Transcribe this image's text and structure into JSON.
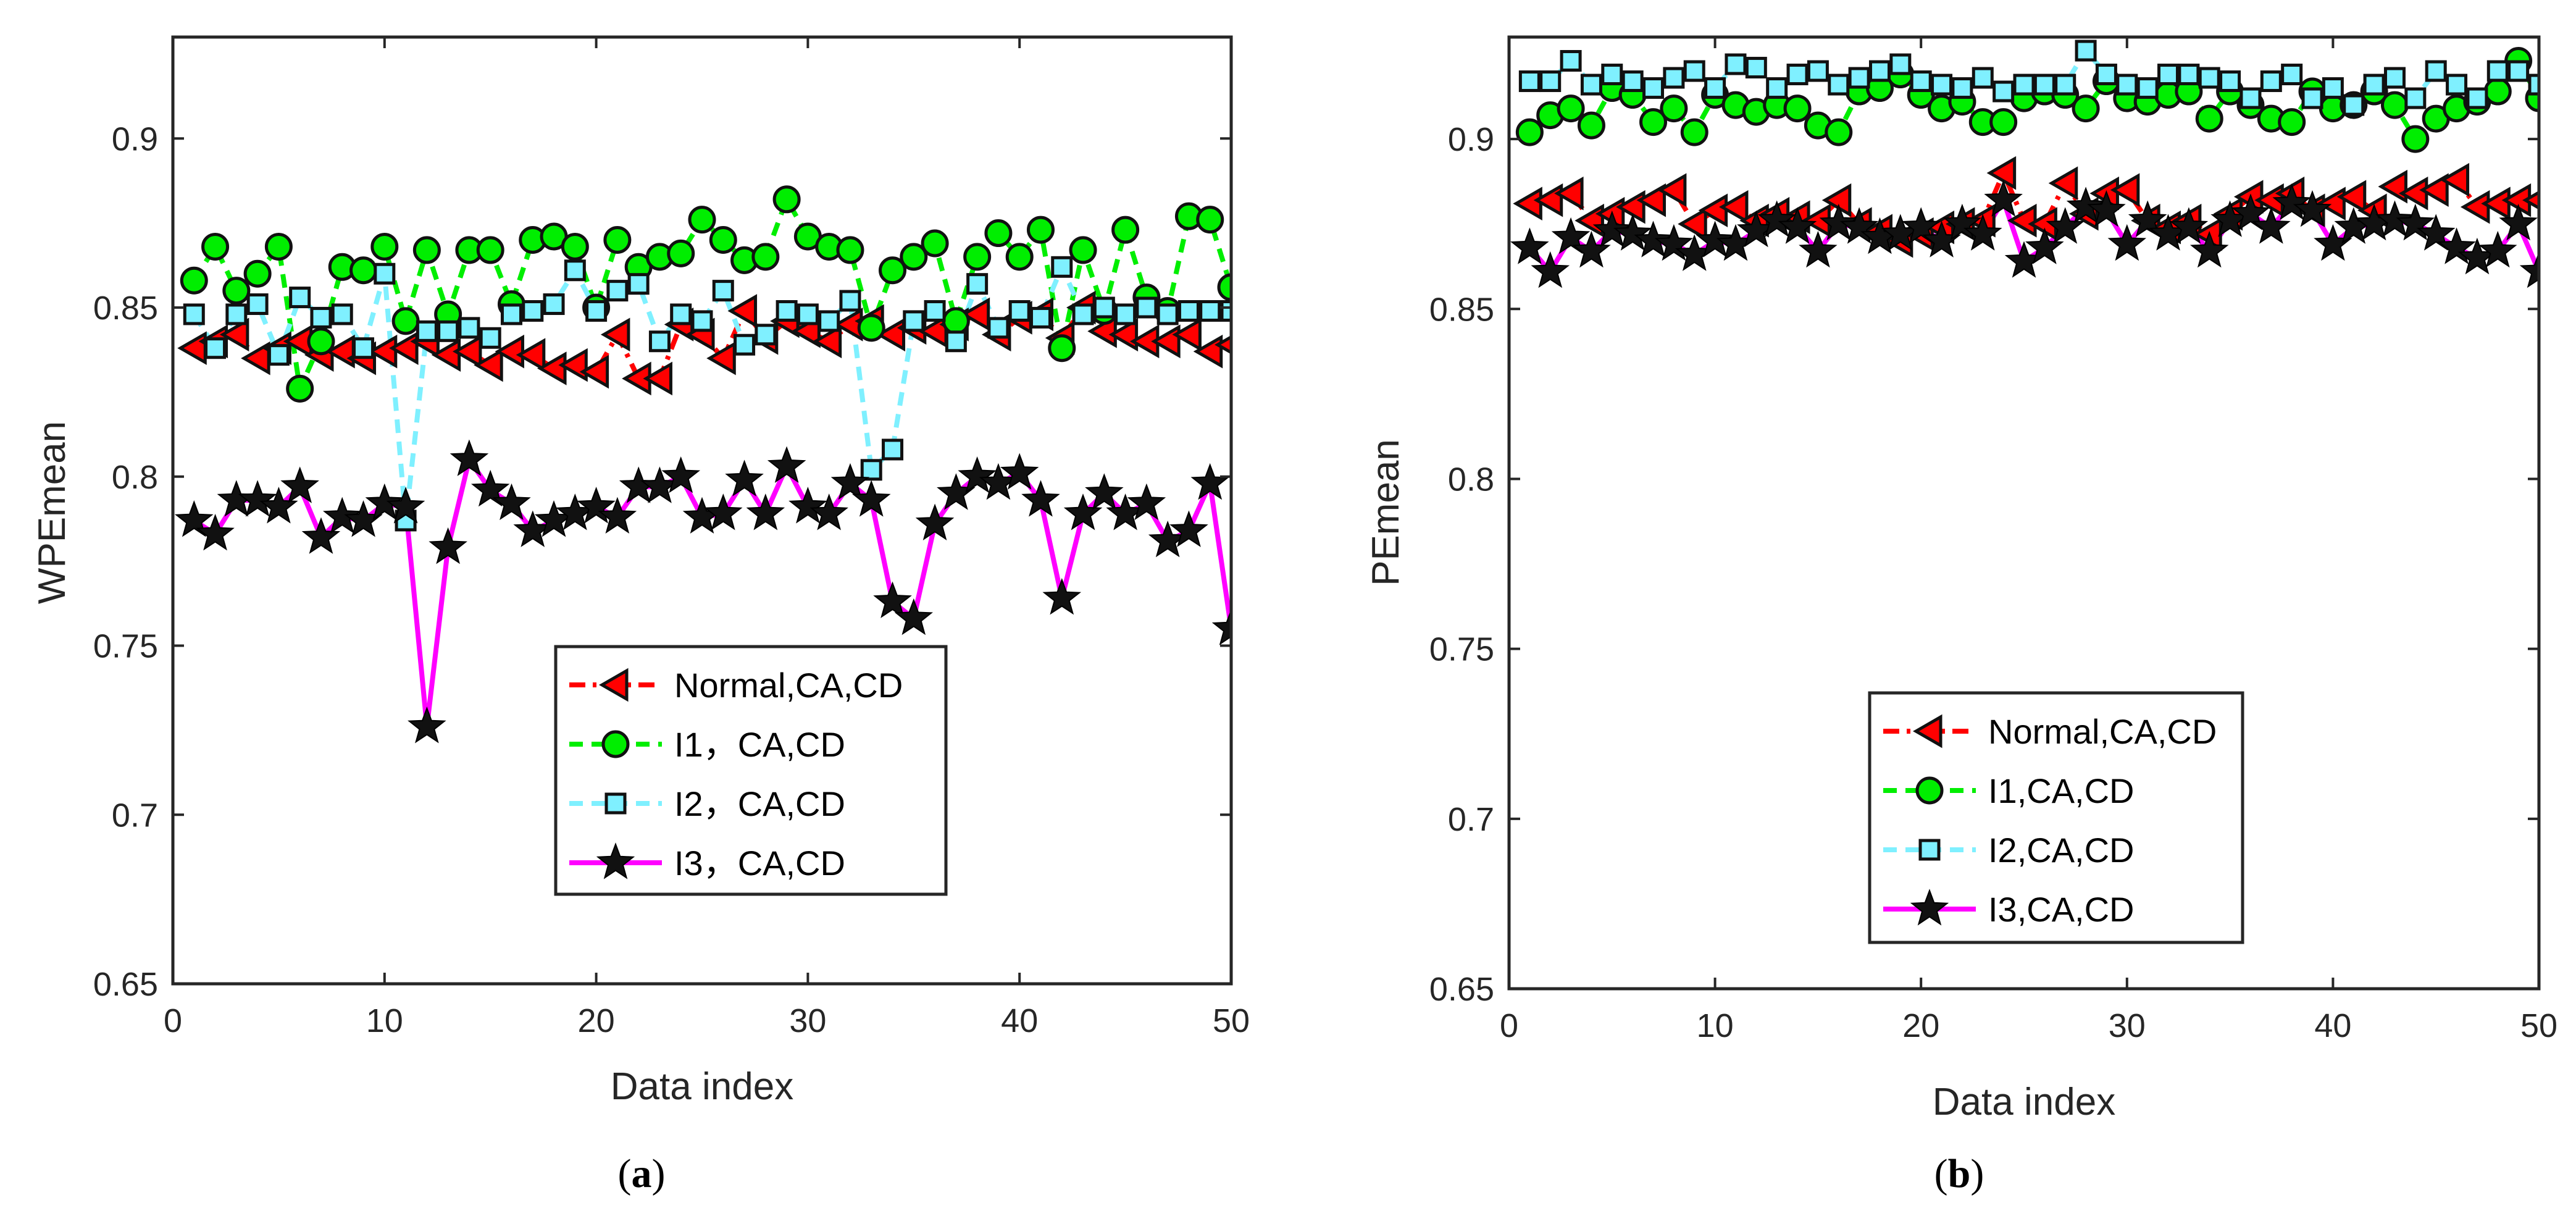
{
  "chart_data": [
    {
      "id": "a",
      "type": "line",
      "caption": {
        "open": "(",
        "letter": "a",
        "close": ")"
      },
      "xlabel": "Data index",
      "ylabel": "WPEmean",
      "xlim": [
        0,
        50
      ],
      "ylim": [
        0.65,
        0.93
      ],
      "xticks": [
        0,
        10,
        20,
        30,
        40,
        50
      ],
      "xtick_labels": [
        "0",
        "10",
        "20",
        "30",
        "40",
        "50"
      ],
      "yticks": [
        0.65,
        0.7,
        0.75,
        0.8,
        0.85,
        0.9
      ],
      "ytick_labels": [
        "0.65",
        "0.7",
        "0.75",
        "0.8",
        "0.85",
        "0.9"
      ],
      "legend_position": "lower-right",
      "x": [
        1,
        2,
        3,
        4,
        5,
        6,
        7,
        8,
        9,
        10,
        11,
        12,
        13,
        14,
        15,
        16,
        17,
        18,
        19,
        20,
        21,
        22,
        23,
        24,
        25,
        26,
        27,
        28,
        29,
        30,
        31,
        32,
        33,
        34,
        35,
        36,
        37,
        38,
        39,
        40,
        41,
        42,
        43,
        44,
        45,
        46,
        47,
        48,
        49,
        50
      ],
      "series": [
        {
          "name": "Normal,CA,CD",
          "color": "#ff0000",
          "marker": "triangle-left",
          "line": "dash-dot",
          "values": [
            0.838,
            0.84,
            0.842,
            0.835,
            0.838,
            0.84,
            0.836,
            0.837,
            0.835,
            0.837,
            0.838,
            0.84,
            0.836,
            0.837,
            0.833,
            0.837,
            0.836,
            0.832,
            0.833,
            0.831,
            0.842,
            0.829,
            0.829,
            0.845,
            0.842,
            0.835,
            0.849,
            0.841,
            0.846,
            0.843,
            0.84,
            0.845,
            0.846,
            0.842,
            0.844,
            0.843,
            0.845,
            0.848,
            0.842,
            0.847,
            0.848,
            0.841,
            0.85,
            0.843,
            0.842,
            0.84,
            0.84,
            0.842,
            0.837,
            0.839
          ]
        },
        {
          "name": "I1，CA,CD",
          "color": "#00ee00",
          "marker": "circle",
          "line": "dash",
          "values": [
            0.858,
            0.868,
            0.855,
            0.86,
            0.868,
            0.826,
            0.84,
            0.862,
            0.861,
            0.868,
            0.846,
            0.867,
            0.848,
            0.867,
            0.867,
            0.851,
            0.87,
            0.871,
            0.868,
            0.85,
            0.87,
            0.862,
            0.865,
            0.866,
            0.876,
            0.87,
            0.864,
            0.865,
            0.882,
            0.871,
            0.868,
            0.867,
            0.844,
            0.861,
            0.865,
            0.869,
            0.846,
            0.865,
            0.872,
            0.865,
            0.873,
            0.838,
            0.867,
            0.849,
            0.873,
            0.853,
            0.849,
            0.877,
            0.876,
            0.856
          ]
        },
        {
          "name": "I2，CA,CD",
          "color": "#7ff0ff",
          "marker": "square",
          "line": "dash",
          "values": [
            0.848,
            0.838,
            0.848,
            0.851,
            0.836,
            0.853,
            0.847,
            0.848,
            0.838,
            0.86,
            0.787,
            0.843,
            0.843,
            0.844,
            0.841,
            0.848,
            0.849,
            0.851,
            0.861,
            0.849,
            0.855,
            0.857,
            0.84,
            0.848,
            0.846,
            0.855,
            0.839,
            0.842,
            0.849,
            0.848,
            0.846,
            0.852,
            0.802,
            0.808,
            0.846,
            0.849,
            0.84,
            0.857,
            0.844,
            0.849,
            0.847,
            0.862,
            0.848,
            0.85,
            0.848,
            0.85,
            0.848,
            0.849,
            0.849,
            0.849
          ]
        },
        {
          "name": "I3，CA,CD",
          "color": "#ff00ff",
          "marker": "star",
          "line": "solid",
          "values": [
            0.787,
            0.783,
            0.793,
            0.793,
            0.791,
            0.797,
            0.782,
            0.788,
            0.787,
            0.792,
            0.791,
            0.726,
            0.779,
            0.805,
            0.796,
            0.792,
            0.784,
            0.787,
            0.789,
            0.791,
            0.788,
            0.797,
            0.797,
            0.8,
            0.788,
            0.789,
            0.799,
            0.789,
            0.803,
            0.791,
            0.789,
            0.798,
            0.793,
            0.763,
            0.758,
            0.786,
            0.795,
            0.8,
            0.798,
            0.801,
            0.793,
            0.764,
            0.789,
            0.795,
            0.789,
            0.792,
            0.781,
            0.784,
            0.798,
            0.755
          ]
        }
      ]
    },
    {
      "id": "b",
      "type": "line",
      "caption": {
        "open": "(",
        "letter": "b",
        "close": ")"
      },
      "xlabel": "Data index",
      "ylabel": "PEmean",
      "xlim": [
        0,
        50
      ],
      "ylim": [
        0.65,
        0.93
      ],
      "xticks": [
        0,
        10,
        20,
        30,
        40,
        50
      ],
      "xtick_labels": [
        "0",
        "10",
        "20",
        "30",
        "40",
        "50"
      ],
      "yticks": [
        0.65,
        0.7,
        0.75,
        0.8,
        0.85,
        0.9
      ],
      "ytick_labels": [
        "0.65",
        "0.7",
        "0.75",
        "0.8",
        "0.85",
        "0.9"
      ],
      "legend_position": "lower-center",
      "x": [
        1,
        2,
        3,
        4,
        5,
        6,
        7,
        8,
        9,
        10,
        11,
        12,
        13,
        14,
        15,
        16,
        17,
        18,
        19,
        20,
        21,
        22,
        23,
        24,
        25,
        26,
        27,
        28,
        29,
        30,
        31,
        32,
        33,
        34,
        35,
        36,
        37,
        38,
        39,
        40,
        41,
        42,
        43,
        44,
        45,
        46,
        47,
        48,
        49,
        50
      ],
      "series": [
        {
          "name": "Normal,CA,CD",
          "color": "#ff0000",
          "marker": "triangle-left",
          "line": "dash-dot",
          "values": [
            0.881,
            0.882,
            0.884,
            0.876,
            0.878,
            0.88,
            0.882,
            0.885,
            0.875,
            0.879,
            0.88,
            0.876,
            0.878,
            0.877,
            0.876,
            0.882,
            0.875,
            0.873,
            0.87,
            0.872,
            0.874,
            0.875,
            0.876,
            0.89,
            0.876,
            0.875,
            0.887,
            0.878,
            0.884,
            0.885,
            0.876,
            0.874,
            0.876,
            0.872,
            0.878,
            0.883,
            0.882,
            0.884,
            0.879,
            0.881,
            0.883,
            0.879,
            0.886,
            0.884,
            0.885,
            0.888,
            0.88,
            0.881,
            0.882,
            0.882
          ]
        },
        {
          "name": "I1,CA,CD",
          "color": "#00ee00",
          "marker": "circle",
          "line": "dash",
          "values": [
            0.902,
            0.907,
            0.909,
            0.904,
            0.915,
            0.913,
            0.905,
            0.909,
            0.902,
            0.913,
            0.91,
            0.908,
            0.91,
            0.909,
            0.904,
            0.902,
            0.914,
            0.915,
            0.919,
            0.913,
            0.909,
            0.911,
            0.905,
            0.905,
            0.912,
            0.914,
            0.913,
            0.909,
            0.917,
            0.912,
            0.911,
            0.913,
            0.914,
            0.906,
            0.914,
            0.91,
            0.906,
            0.905,
            0.914,
            0.909,
            0.91,
            0.914,
            0.91,
            0.9,
            0.906,
            0.909,
            0.911,
            0.914,
            0.923,
            0.912
          ]
        },
        {
          "name": "I2,CA,CD",
          "color": "#7ff0ff",
          "marker": "square",
          "line": "dash",
          "values": [
            0.917,
            0.917,
            0.923,
            0.916,
            0.919,
            0.917,
            0.915,
            0.918,
            0.92,
            0.915,
            0.922,
            0.921,
            0.915,
            0.919,
            0.92,
            0.916,
            0.918,
            0.92,
            0.922,
            0.917,
            0.916,
            0.915,
            0.918,
            0.914,
            0.916,
            0.916,
            0.916,
            0.926,
            0.919,
            0.916,
            0.915,
            0.919,
            0.919,
            0.918,
            0.917,
            0.912,
            0.917,
            0.919,
            0.912,
            0.915,
            0.91,
            0.916,
            0.918,
            0.912,
            0.92,
            0.916,
            0.912,
            0.92,
            0.92,
            0.916
          ]
        },
        {
          "name": "I3,CA,CD",
          "color": "#ff00ff",
          "marker": "star",
          "line": "solid",
          "values": [
            0.868,
            0.861,
            0.871,
            0.867,
            0.873,
            0.872,
            0.87,
            0.869,
            0.866,
            0.87,
            0.869,
            0.873,
            0.876,
            0.874,
            0.867,
            0.875,
            0.874,
            0.871,
            0.872,
            0.874,
            0.87,
            0.875,
            0.872,
            0.882,
            0.864,
            0.868,
            0.874,
            0.88,
            0.879,
            0.869,
            0.876,
            0.872,
            0.874,
            0.867,
            0.876,
            0.878,
            0.874,
            0.881,
            0.879,
            0.869,
            0.874,
            0.875,
            0.876,
            0.875,
            0.872,
            0.868,
            0.865,
            0.867,
            0.875,
            0.861
          ]
        }
      ]
    }
  ]
}
